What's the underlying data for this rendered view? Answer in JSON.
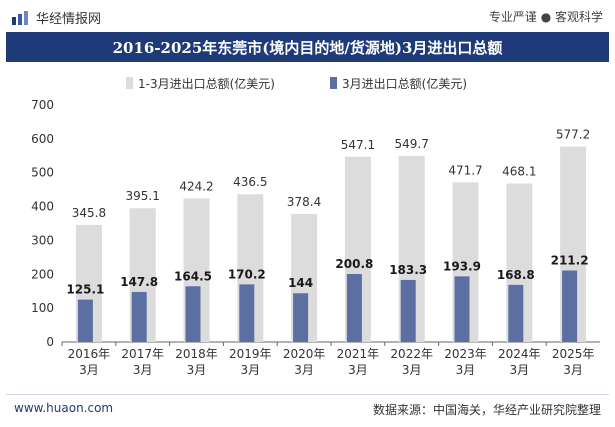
{
  "header": {
    "brand": "华经情报网",
    "slogan": "专业严谨 ● 客观科学"
  },
  "title": "2016-2025年东莞市(境内目的地/货源地)3月进出口总额",
  "footer": {
    "website": "www.huaon.com",
    "source": "数据来源：中国海关，华经产业研究院整理"
  },
  "colors": {
    "title_bg": "#1f3a78",
    "series_total": "#dcdcdc",
    "series_march": "#5b6fa3"
  },
  "chart_data": {
    "type": "bar",
    "categories": [
      "2016年\n3月",
      "2017年\n3月",
      "2018年\n3月",
      "2019年\n3月",
      "2020年\n3月",
      "2021年\n3月",
      "2022年\n3月",
      "2023年\n3月",
      "2024年\n3月",
      "2025年\n3月"
    ],
    "series": [
      {
        "name": "1-3月进出口总额(亿美元)",
        "values": [
          345.8,
          395.1,
          424.2,
          436.5,
          378.4,
          547.1,
          549.7,
          471.7,
          468.1,
          577.2
        ]
      },
      {
        "name": "3月进出口总额(亿美元)",
        "values": [
          125.1,
          147.8,
          164.5,
          170.2,
          144,
          200.8,
          183.3,
          193.9,
          168.8,
          211.2
        ]
      }
    ],
    "data_labels": {
      "total": [
        "345.8",
        "395.1",
        "424.2",
        "436.5",
        "378.4",
        "547.1",
        "549.7",
        "471.7",
        "468.1",
        "577.2"
      ],
      "march": [
        "125.1",
        "147.8",
        "164.5",
        "170.2",
        "144",
        "200.8",
        "183.3",
        "193.9",
        "168.8",
        "211.2"
      ]
    },
    "yticks": [
      "0",
      "100",
      "200",
      "300",
      "400",
      "500",
      "600",
      "700"
    ],
    "ylim": [
      0,
      700
    ],
    "legend_position": "top-left",
    "grid": false
  }
}
